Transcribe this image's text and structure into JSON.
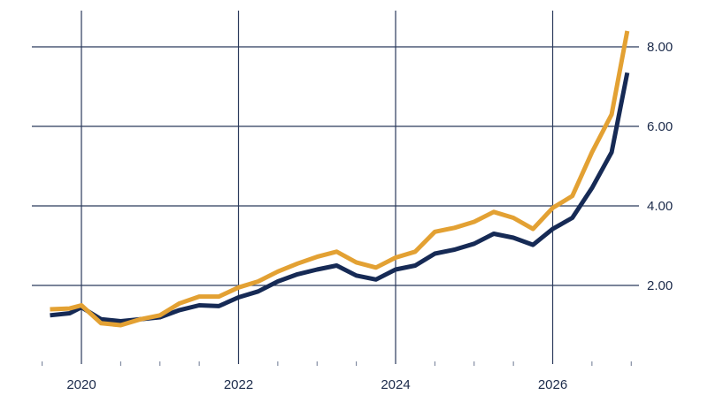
{
  "chart_data": {
    "type": "line",
    "title": "",
    "xlabel": "",
    "ylabel": "",
    "grid": true,
    "x_tick_labels": [
      "2020",
      "2022",
      "2024",
      "2026"
    ],
    "y_tick_labels": [
      "2.00",
      "4.00",
      "6.00",
      "8.00"
    ],
    "x_ticks": [
      2020,
      2022,
      2024,
      2026
    ],
    "y_ticks": [
      2,
      4,
      6,
      8
    ],
    "xlim": [
      2019.5,
      2027.5
    ],
    "ylim": [
      0.0,
      8.8
    ],
    "x": [
      2019.6,
      2019.85,
      2020.0,
      2020.25,
      2020.5,
      2020.75,
      2021.0,
      2021.25,
      2021.5,
      2021.75,
      2022.0,
      2022.25,
      2022.5,
      2022.75,
      2023.0,
      2023.25,
      2023.5,
      2023.75,
      2024.0,
      2024.25,
      2024.5,
      2024.75,
      2025.0,
      2025.25,
      2025.5,
      2025.75,
      2026.0,
      2026.25,
      2026.5,
      2026.75,
      2026.95
    ],
    "series": [
      {
        "color": "#162a55",
        "values": [
          1.25,
          1.3,
          1.45,
          1.15,
          1.1,
          1.15,
          1.2,
          1.38,
          1.5,
          1.48,
          1.7,
          1.85,
          2.1,
          2.28,
          2.4,
          2.5,
          2.25,
          2.15,
          2.4,
          2.5,
          2.8,
          2.9,
          3.05,
          3.3,
          3.2,
          3.02,
          3.42,
          3.7,
          4.45,
          5.35,
          7.35
        ]
      },
      {
        "color": "#e3a133",
        "values": [
          1.4,
          1.42,
          1.5,
          1.05,
          1.0,
          1.15,
          1.25,
          1.55,
          1.72,
          1.72,
          1.95,
          2.1,
          2.35,
          2.55,
          2.72,
          2.85,
          2.58,
          2.45,
          2.7,
          2.85,
          3.35,
          3.45,
          3.6,
          3.85,
          3.7,
          3.42,
          3.95,
          4.25,
          5.35,
          6.3,
          8.4
        ]
      }
    ]
  }
}
